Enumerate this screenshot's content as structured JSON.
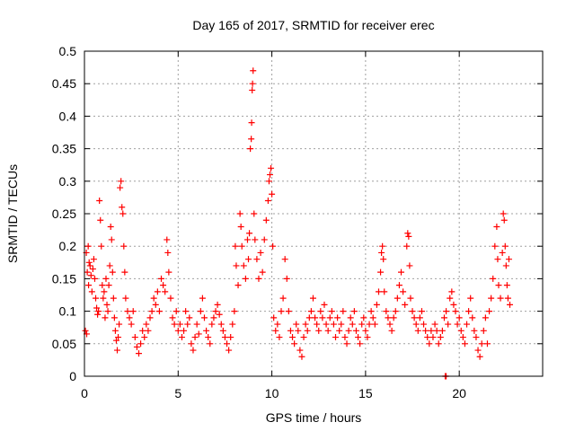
{
  "chart_data": {
    "type": "scatter",
    "title": "Day 165 of 2017, SRMTID for receiver erec",
    "xlabel": "GPS time / hours",
    "ylabel": "SRMTID / TECUs",
    "xlim": [
      0,
      24.45
    ],
    "ylim": [
      0,
      0.5
    ],
    "xticks": [
      0,
      5,
      10,
      15,
      20
    ],
    "yticks": [
      0,
      0.05,
      0.1,
      0.15,
      0.2,
      0.25,
      0.3,
      0.35,
      0.4,
      0.45,
      0.5
    ],
    "xtick_labels": [
      "0",
      "5",
      "10",
      "15",
      "20"
    ],
    "ytick_labels": [
      "0",
      "0.05",
      "0.1",
      "0.15",
      "0.2",
      "0.25",
      "0.3",
      "0.35",
      "0.4",
      "0.45",
      "0.5"
    ],
    "grid": true,
    "marker": "plus",
    "color": "#ff0000",
    "series": [
      {
        "name": "SRMTID",
        "points": [
          [
            0.05,
            0.07
          ],
          [
            0.1,
            0.19
          ],
          [
            0.12,
            0.065
          ],
          [
            0.15,
            0.16
          ],
          [
            0.2,
            0.2
          ],
          [
            0.22,
            0.14
          ],
          [
            0.25,
            0.175
          ],
          [
            0.3,
            0.17
          ],
          [
            0.35,
            0.155
          ],
          [
            0.4,
            0.13
          ],
          [
            0.45,
            0.165
          ],
          [
            0.5,
            0.18
          ],
          [
            0.55,
            0.15
          ],
          [
            0.6,
            0.12
          ],
          [
            0.65,
            0.105
          ],
          [
            0.7,
            0.095
          ],
          [
            0.75,
            0.1
          ],
          [
            0.8,
            0.27
          ],
          [
            0.85,
            0.24
          ],
          [
            0.9,
            0.2
          ],
          [
            0.95,
            0.14
          ],
          [
            1.0,
            0.12
          ],
          [
            1.05,
            0.13
          ],
          [
            1.1,
            0.09
          ],
          [
            1.15,
            0.15
          ],
          [
            1.2,
            0.11
          ],
          [
            1.25,
            0.1
          ],
          [
            1.3,
            0.14
          ],
          [
            1.35,
            0.17
          ],
          [
            1.4,
            0.23
          ],
          [
            1.45,
            0.21
          ],
          [
            1.5,
            0.16
          ],
          [
            1.55,
            0.12
          ],
          [
            1.6,
            0.09
          ],
          [
            1.65,
            0.07
          ],
          [
            1.7,
            0.055
          ],
          [
            1.75,
            0.04
          ],
          [
            1.8,
            0.06
          ],
          [
            1.85,
            0.08
          ],
          [
            1.9,
            0.29
          ],
          [
            1.95,
            0.3
          ],
          [
            2.0,
            0.26
          ],
          [
            2.05,
            0.25
          ],
          [
            2.1,
            0.2
          ],
          [
            2.15,
            0.16
          ],
          [
            2.2,
            0.12
          ],
          [
            2.3,
            0.1
          ],
          [
            2.4,
            0.09
          ],
          [
            2.5,
            0.08
          ],
          [
            2.6,
            0.1
          ],
          [
            2.7,
            0.06
          ],
          [
            2.8,
            0.045
          ],
          [
            2.9,
            0.035
          ],
          [
            3.0,
            0.05
          ],
          [
            3.1,
            0.07
          ],
          [
            3.2,
            0.06
          ],
          [
            3.3,
            0.08
          ],
          [
            3.4,
            0.07
          ],
          [
            3.5,
            0.09
          ],
          [
            3.6,
            0.1
          ],
          [
            3.7,
            0.12
          ],
          [
            3.8,
            0.11
          ],
          [
            3.9,
            0.13
          ],
          [
            4.0,
            0.1
          ],
          [
            4.1,
            0.15
          ],
          [
            4.2,
            0.14
          ],
          [
            4.3,
            0.13
          ],
          [
            4.4,
            0.21
          ],
          [
            4.45,
            0.19
          ],
          [
            4.5,
            0.16
          ],
          [
            4.6,
            0.12
          ],
          [
            4.7,
            0.09
          ],
          [
            4.8,
            0.08
          ],
          [
            4.9,
            0.1
          ],
          [
            5.0,
            0.07
          ],
          [
            5.1,
            0.08
          ],
          [
            5.2,
            0.06
          ],
          [
            5.3,
            0.07
          ],
          [
            5.4,
            0.1
          ],
          [
            5.5,
            0.08
          ],
          [
            5.6,
            0.09
          ],
          [
            5.7,
            0.05
          ],
          [
            5.8,
            0.04
          ],
          [
            5.9,
            0.06
          ],
          [
            6.0,
            0.08
          ],
          [
            6.1,
            0.065
          ],
          [
            6.2,
            0.1
          ],
          [
            6.3,
            0.12
          ],
          [
            6.4,
            0.09
          ],
          [
            6.5,
            0.07
          ],
          [
            6.6,
            0.06
          ],
          [
            6.7,
            0.05
          ],
          [
            6.8,
            0.08
          ],
          [
            6.9,
            0.09
          ],
          [
            7.0,
            0.1
          ],
          [
            7.1,
            0.11
          ],
          [
            7.2,
            0.095
          ],
          [
            7.3,
            0.08
          ],
          [
            7.4,
            0.07
          ],
          [
            7.5,
            0.06
          ],
          [
            7.6,
            0.05
          ],
          [
            7.7,
            0.04
          ],
          [
            7.8,
            0.06
          ],
          [
            7.9,
            0.08
          ],
          [
            8.0,
            0.1
          ],
          [
            8.05,
            0.2
          ],
          [
            8.1,
            0.17
          ],
          [
            8.2,
            0.14
          ],
          [
            8.3,
            0.25
          ],
          [
            8.35,
            0.23
          ],
          [
            8.4,
            0.2
          ],
          [
            8.5,
            0.17
          ],
          [
            8.6,
            0.15
          ],
          [
            8.7,
            0.21
          ],
          [
            8.75,
            0.18
          ],
          [
            8.8,
            0.22
          ],
          [
            8.85,
            0.35
          ],
          [
            8.9,
            0.365
          ],
          [
            8.92,
            0.39
          ],
          [
            8.95,
            0.44
          ],
          [
            8.97,
            0.45
          ],
          [
            9.0,
            0.47
          ],
          [
            9.05,
            0.25
          ],
          [
            9.1,
            0.21
          ],
          [
            9.2,
            0.18
          ],
          [
            9.3,
            0.15
          ],
          [
            9.4,
            0.19
          ],
          [
            9.5,
            0.16
          ],
          [
            9.6,
            0.21
          ],
          [
            9.7,
            0.24
          ],
          [
            9.8,
            0.27
          ],
          [
            9.85,
            0.3
          ],
          [
            9.9,
            0.31
          ],
          [
            9.95,
            0.32
          ],
          [
            10.0,
            0.28
          ],
          [
            10.05,
            0.2
          ],
          [
            10.1,
            0.09
          ],
          [
            10.2,
            0.07
          ],
          [
            10.3,
            0.08
          ],
          [
            10.4,
            0.06
          ],
          [
            10.5,
            0.1
          ],
          [
            10.6,
            0.12
          ],
          [
            10.7,
            0.18
          ],
          [
            10.8,
            0.15
          ],
          [
            10.9,
            0.1
          ],
          [
            11.0,
            0.07
          ],
          [
            11.1,
            0.06
          ],
          [
            11.2,
            0.05
          ],
          [
            11.3,
            0.08
          ],
          [
            11.4,
            0.07
          ],
          [
            11.5,
            0.04
          ],
          [
            11.6,
            0.03
          ],
          [
            11.7,
            0.06
          ],
          [
            11.8,
            0.08
          ],
          [
            11.9,
            0.07
          ],
          [
            12.0,
            0.09
          ],
          [
            12.1,
            0.1
          ],
          [
            12.2,
            0.12
          ],
          [
            12.3,
            0.09
          ],
          [
            12.4,
            0.08
          ],
          [
            12.5,
            0.07
          ],
          [
            12.6,
            0.1
          ],
          [
            12.7,
            0.09
          ],
          [
            12.8,
            0.11
          ],
          [
            12.9,
            0.08
          ],
          [
            13.0,
            0.07
          ],
          [
            13.1,
            0.09
          ],
          [
            13.2,
            0.1
          ],
          [
            13.3,
            0.08
          ],
          [
            13.4,
            0.06
          ],
          [
            13.5,
            0.09
          ],
          [
            13.6,
            0.07
          ],
          [
            13.7,
            0.08
          ],
          [
            13.8,
            0.1
          ],
          [
            13.9,
            0.06
          ],
          [
            14.0,
            0.05
          ],
          [
            14.1,
            0.07
          ],
          [
            14.2,
            0.09
          ],
          [
            14.3,
            0.08
          ],
          [
            14.4,
            0.1
          ],
          [
            14.5,
            0.07
          ],
          [
            14.6,
            0.06
          ],
          [
            14.7,
            0.05
          ],
          [
            14.8,
            0.08
          ],
          [
            14.9,
            0.09
          ],
          [
            15.0,
            0.07
          ],
          [
            15.1,
            0.06
          ],
          [
            15.2,
            0.08
          ],
          [
            15.3,
            0.1
          ],
          [
            15.4,
            0.09
          ],
          [
            15.5,
            0.08
          ],
          [
            15.6,
            0.11
          ],
          [
            15.7,
            0.13
          ],
          [
            15.8,
            0.16
          ],
          [
            15.85,
            0.19
          ],
          [
            15.9,
            0.2
          ],
          [
            15.95,
            0.18
          ],
          [
            16.0,
            0.13
          ],
          [
            16.1,
            0.1
          ],
          [
            16.2,
            0.09
          ],
          [
            16.3,
            0.08
          ],
          [
            16.4,
            0.07
          ],
          [
            16.5,
            0.09
          ],
          [
            16.6,
            0.1
          ],
          [
            16.7,
            0.12
          ],
          [
            16.8,
            0.14
          ],
          [
            16.9,
            0.16
          ],
          [
            17.0,
            0.13
          ],
          [
            17.1,
            0.11
          ],
          [
            17.2,
            0.2
          ],
          [
            17.25,
            0.22
          ],
          [
            17.3,
            0.215
          ],
          [
            17.35,
            0.17
          ],
          [
            17.4,
            0.12
          ],
          [
            17.5,
            0.1
          ],
          [
            17.6,
            0.09
          ],
          [
            17.7,
            0.08
          ],
          [
            17.8,
            0.07
          ],
          [
            17.9,
            0.09
          ],
          [
            18.0,
            0.1
          ],
          [
            18.1,
            0.08
          ],
          [
            18.2,
            0.07
          ],
          [
            18.3,
            0.06
          ],
          [
            18.4,
            0.05
          ],
          [
            18.5,
            0.07
          ],
          [
            18.6,
            0.06
          ],
          [
            18.7,
            0.08
          ],
          [
            18.8,
            0.07
          ],
          [
            18.9,
            0.05
          ],
          [
            19.0,
            0.06
          ],
          [
            19.1,
            0.07
          ],
          [
            19.2,
            0.09
          ],
          [
            19.3,
            0.1
          ],
          [
            19.4,
            0.08
          ],
          [
            19.5,
            0.12
          ],
          [
            19.6,
            0.13
          ],
          [
            19.7,
            0.11
          ],
          [
            19.8,
            0.1
          ],
          [
            19.9,
            0.08
          ],
          [
            20.0,
            0.09
          ],
          [
            20.1,
            0.07
          ],
          [
            20.2,
            0.06
          ],
          [
            20.3,
            0.05
          ],
          [
            20.4,
            0.08
          ],
          [
            20.5,
            0.1
          ],
          [
            20.6,
            0.12
          ],
          [
            20.7,
            0.09
          ],
          [
            20.8,
            0.07
          ],
          [
            20.9,
            0.06
          ],
          [
            21.0,
            0.04
          ],
          [
            21.1,
            0.03
          ],
          [
            21.2,
            0.05
          ],
          [
            21.3,
            0.07
          ],
          [
            21.4,
            0.09
          ],
          [
            21.5,
            0.05
          ],
          [
            21.6,
            0.1
          ],
          [
            21.7,
            0.12
          ],
          [
            21.8,
            0.15
          ],
          [
            21.9,
            0.2
          ],
          [
            22.0,
            0.23
          ],
          [
            22.05,
            0.18
          ],
          [
            22.1,
            0.14
          ],
          [
            22.2,
            0.12
          ],
          [
            22.3,
            0.19
          ],
          [
            22.35,
            0.25
          ],
          [
            22.4,
            0.24
          ],
          [
            22.45,
            0.2
          ],
          [
            22.5,
            0.17
          ],
          [
            22.55,
            0.14
          ],
          [
            22.6,
            0.12
          ],
          [
            22.65,
            0.18
          ],
          [
            22.7,
            0.11
          ],
          [
            19.25,
            0.0
          ],
          [
            19.3,
            0.0
          ]
        ]
      }
    ]
  }
}
